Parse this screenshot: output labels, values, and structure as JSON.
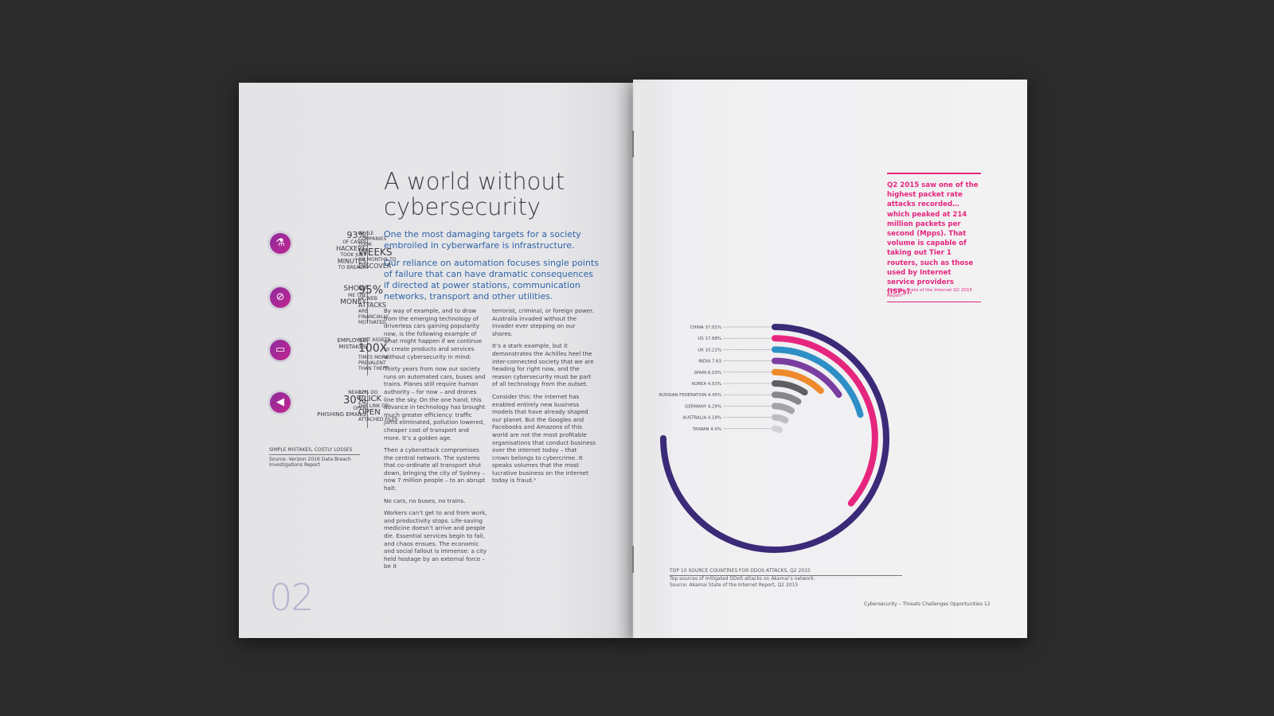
{
  "left_page": {
    "title": "A world without cybersecurity",
    "lead_1": "One the most damaging targets for a society embroiled in cyberwarfare is infrastructure.",
    "lead_2": "Our reliance on automation focuses single points of failure that can have dramatic consequences if directed at power stations, communication networks, transport and other utilities.",
    "col1": [
      "By way of example, and to draw from the emerging technology of driverless cars gaining popularity now, is the following example of what might happen if we continue to create products and services without cybersecurity in mind:",
      "Thirty years from now our society runs on automated cars, buses and trains. Planes still require human authority – for now – and drones line the sky. On the one hand, this advance in technology has brought much greater efficiency: traffic jams eliminated, pollution lowered, cheaper cost of transport and more. It’s a golden age.",
      "Then a cyberattack compromises the central network. The systems that co-ordinate all transport shut down, bringing the city of Sydney – now 7 million people – to an abrupt halt.",
      "No cars, no buses, no trains.",
      "Workers can’t get to and from work, and productivity stops. Life-saving medicine doesn’t arrive and people die. Essential services begin to fail, and chaos ensues. The economic and social fallout is immense: a city held hostage by an external force – be it"
    ],
    "col2": [
      "terrorist, criminal, or foreign power. Australia invaded without the invader ever stepping on our shores.",
      "It’s a stark example, but it demonstrates the Achilles heel the inter-connected society that we are heading for right now, and the reason cybersecurity must be part of all technology from the outset.",
      "Consider this: the internet has enabled entirely new business models that have already shaped our planet. But the Googles and Facebooks and Amazons of this world are not the most profitable organisations that conduct business over the internet today – that crown belongs to cybercrime. It speaks volumes that the most lucrative business on the internet today is fraud.⁹"
    ],
    "stats": [
      {
        "icon": "hacker-bottle-icon",
        "glyph": "⚗",
        "big": "93%",
        "small_before": "OF CASES",
        "mid": "HACKERS",
        "small_after": "TOOK JUST",
        "mid2": "MINUTES",
        "small_end": "TO BREACH",
        "r_small": "WHILE COMPANIES TOOK",
        "r_big": "WEEKS",
        "r_small2": "OR MONTHS TO",
        "r_mid": "DISCOVER"
      },
      {
        "icon": "money-clip-icon",
        "glyph": "⊘",
        "big": "",
        "small_before": "",
        "mid": "SHOW",
        "small_after": "ME THE",
        "mid2": "MONEY",
        "small_end": "",
        "r_small": "",
        "r_big": "95%",
        "r_small2": "OF WEB",
        "r_mid": "ATTACKS",
        "r_end": "ARE FINANCIALLY MOTIVATED"
      },
      {
        "icon": "folder-icon",
        "glyph": "▭",
        "big": "",
        "small_before": "",
        "mid": "EMPLOYEE",
        "small_after": "",
        "mid2": "MISTAKES",
        "small_end": "",
        "r_small": "LOST ASSETS",
        "r_big": "100x",
        "r_small2": "TIMES MORE PREVALENT",
        "r_mid": "THAN THEFT"
      },
      {
        "icon": "phishing-fish-icon",
        "glyph": "◀",
        "big": "30%",
        "small_before": "NEARLY",
        "mid": "",
        "small_after": "OPEN",
        "mid2": "PHISHING EMAILS",
        "small_end": "",
        "r_small": "12% DO",
        "r_big": "CLICK",
        "r_small2": "THE LINK OR",
        "r_mid": "OPEN",
        "r_end": "ATTACHED FILES"
      }
    ],
    "caption_heading": "SIMPLE MISTAKES, COSTLY LOSSES",
    "caption_source": "Source: Verizon 2016 Data Breach Investigations Report",
    "page_number": "02"
  },
  "right_page": {
    "callout": "Q2 2015 saw one of the highest packet rate attacks recorded… which peaked at 214 million packets per second (Mpps). That volume is capable of taking out Tier 1 routers, such as those used by Internet service providers (ISPs).",
    "callout_source": "Akamai, State of the Internet Q2 2015 Report¹²",
    "chart_caption_heading": "TOP 10 SOURCE COUNTRIES FOR DDOS ATTACKS, Q2 2015",
    "chart_caption_line1": "Top sources of mitigated DDoS attacks on Akamai’s network.",
    "chart_caption_line2": "Source: Akamai State of the Internet Report, Q2 2015",
    "footer": "Cybersecurity – Threats Challenges Opportunities   12"
  },
  "chart_data": {
    "type": "radial-bar",
    "title": "TOP 10 SOURCE COUNTRIES FOR DDOS ATTACKS, Q2 2015",
    "categories": [
      "CHINA 37.01%",
      "US 17.88%",
      "UK 10.21%",
      "INDIA 7.63",
      "SPAIN 6.03%",
      "KOREA 4.53%",
      "RUSSIAN FEDERATION 4.45%",
      "GERMANY 4.29%",
      "AUSTRALIA 4.18%",
      "TAIWAN 4.0%"
    ],
    "values": [
      37.01,
      17.88,
      10.21,
      7.63,
      6.03,
      4.53,
      4.45,
      4.29,
      4.18,
      4.0
    ],
    "colors": [
      "#3b2a78",
      "#e6267e",
      "#2e8fc6",
      "#7a3ea0",
      "#ee8a2b",
      "#5e5e63",
      "#86868b",
      "#a4a4a8",
      "#bdbdc1",
      "#d2d2d5"
    ]
  }
}
